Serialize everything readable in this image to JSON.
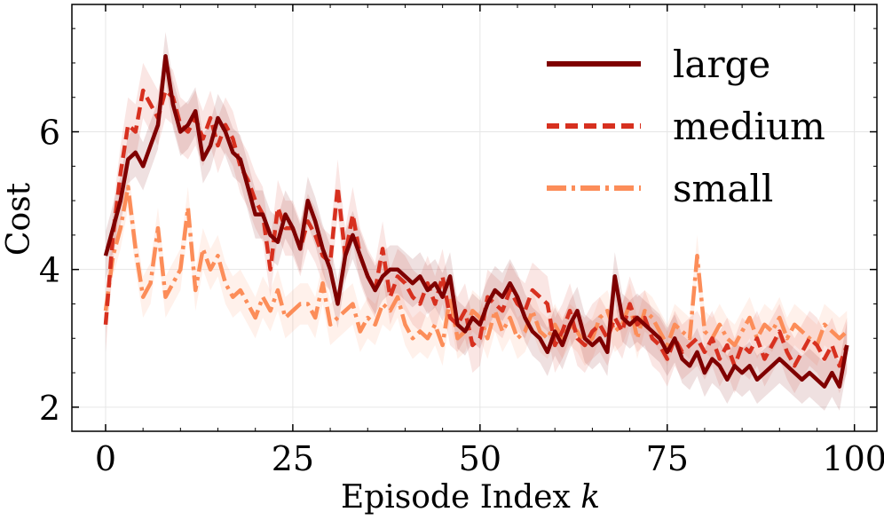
{
  "chart_data": {
    "type": "line",
    "title": "",
    "xlabel": "Episode Index",
    "xlabel_var": "k",
    "ylabel": "Cost",
    "xlim": [
      -4.5,
      103
    ],
    "ylim": [
      1.65,
      7.85
    ],
    "xticks": [
      0,
      25,
      50,
      75,
      100
    ],
    "yticks": [
      2,
      4,
      6
    ],
    "xtick_labels": [
      "0",
      "25",
      "50",
      "75",
      "100"
    ],
    "ytick_labels": [
      "2",
      "4",
      "6"
    ],
    "grid": true,
    "legend_position": "top-right",
    "series": [
      {
        "name": "large",
        "color": "#7f0000",
        "dash": "solid",
        "band": 0.35,
        "values": [
          4.2,
          4.6,
          5.0,
          5.6,
          5.7,
          5.5,
          5.8,
          6.1,
          7.1,
          6.4,
          6.0,
          6.1,
          6.3,
          5.6,
          5.8,
          6.2,
          6.0,
          5.7,
          5.6,
          5.2,
          4.8,
          4.8,
          4.5,
          4.4,
          4.8,
          4.6,
          4.3,
          5.0,
          4.7,
          4.3,
          4.0,
          3.5,
          4.2,
          4.5,
          4.2,
          3.9,
          3.7,
          3.9,
          4.0,
          4.0,
          3.9,
          3.8,
          3.9,
          3.7,
          3.8,
          3.6,
          3.9,
          3.2,
          3.1,
          3.3,
          3.2,
          3.5,
          3.7,
          3.6,
          3.8,
          3.6,
          3.3,
          3.1,
          3.0,
          2.8,
          3.1,
          2.9,
          3.2,
          3.4,
          3.0,
          2.9,
          3.0,
          2.8,
          3.9,
          3.3,
          3.2,
          3.3,
          3.2,
          3.1,
          3.0,
          2.8,
          3.0,
          2.7,
          2.6,
          2.8,
          2.5,
          2.7,
          2.6,
          2.4,
          2.6,
          2.5,
          2.6,
          2.4,
          2.5,
          2.6,
          2.7,
          2.6,
          2.5,
          2.4,
          2.5,
          2.4,
          2.3,
          2.5,
          2.3,
          2.9
        ]
      },
      {
        "name": "medium",
        "color": "#d7301f",
        "dash": "14,7",
        "band": 0.4,
        "values": [
          3.2,
          4.5,
          5.4,
          6.1,
          6.0,
          6.6,
          6.4,
          6.2,
          6.6,
          6.5,
          6.1,
          6.0,
          6.2,
          5.9,
          6.2,
          5.8,
          6.1,
          5.9,
          5.5,
          5.3,
          5.0,
          4.8,
          4.0,
          4.9,
          4.6,
          4.6,
          4.3,
          4.7,
          4.5,
          4.2,
          4.1,
          5.2,
          4.2,
          4.8,
          4.2,
          3.9,
          3.7,
          4.3,
          3.6,
          3.9,
          3.8,
          3.6,
          3.5,
          3.8,
          3.5,
          3.9,
          3.3,
          3.2,
          3.4,
          2.9,
          3.0,
          3.6,
          3.5,
          3.4,
          3.7,
          3.5,
          3.4,
          3.7,
          3.6,
          3.5,
          2.9,
          3.1,
          3.4,
          3.0,
          2.9,
          3.1,
          3.2,
          3.0,
          3.3,
          3.1,
          3.5,
          3.2,
          3.3,
          3.0,
          2.9,
          2.7,
          3.0,
          2.8,
          2.9,
          3.0,
          2.8,
          3.0,
          2.7,
          2.9,
          2.6,
          2.9,
          2.8,
          3.0,
          2.7,
          2.9,
          3.1,
          2.8,
          2.6,
          2.8,
          3.0,
          2.9,
          2.7,
          2.9,
          2.6,
          2.9
        ]
      },
      {
        "name": "small",
        "color": "#fc8d59",
        "dash": "22,6,4,6",
        "band": 0.3,
        "values": [
          3.4,
          4.2,
          4.6,
          5.2,
          4.3,
          3.6,
          3.8,
          4.6,
          3.6,
          3.8,
          4.0,
          4.9,
          3.7,
          4.3,
          4.0,
          4.2,
          3.8,
          3.6,
          3.7,
          3.5,
          3.3,
          3.6,
          3.4,
          3.7,
          3.3,
          3.4,
          3.5,
          3.5,
          3.3,
          3.8,
          3.2,
          3.3,
          3.4,
          3.5,
          3.1,
          3.3,
          3.2,
          3.5,
          3.4,
          3.6,
          3.2,
          3.0,
          3.1,
          3.0,
          3.2,
          2.9,
          3.6,
          3.0,
          3.1,
          3.4,
          3.3,
          3.0,
          3.4,
          3.1,
          3.3,
          3.0,
          3.1,
          3.4,
          3.1,
          3.0,
          3.2,
          3.0,
          3.2,
          3.1,
          2.9,
          3.0,
          3.3,
          3.4,
          3.1,
          3.2,
          3.5,
          3.0,
          3.4,
          3.3,
          3.1,
          2.9,
          3.2,
          3.1,
          3.0,
          4.2,
          3.1,
          3.0,
          3.2,
          3.0,
          2.9,
          3.1,
          3.3,
          3.0,
          3.2,
          3.1,
          3.3,
          3.0,
          3.2,
          3.1,
          3.0,
          2.9,
          3.2,
          3.1,
          3.0,
          3.1
        ]
      }
    ]
  }
}
